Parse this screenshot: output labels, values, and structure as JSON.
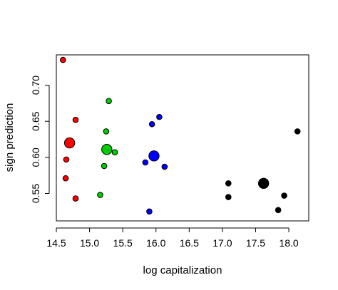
{
  "chart_data": {
    "type": "scatter",
    "title": "",
    "xlabel": "log capitalization",
    "ylabel": "sign prediction",
    "xlim": [
      14.5,
      18.3
    ],
    "ylim": [
      0.512,
      0.742
    ],
    "x_ticks": [
      14.5,
      15.0,
      15.5,
      16.0,
      16.5,
      17.0,
      17.5,
      18.0
    ],
    "x_tick_labels": [
      "14.5",
      "15.0",
      "15.5",
      "16.0",
      "16.5",
      "17.0",
      "17.5",
      "18.0"
    ],
    "y_ticks": [
      0.55,
      0.6,
      0.65,
      0.7
    ],
    "y_tick_labels": [
      "0.55",
      "0.60",
      "0.65",
      "0.70"
    ],
    "grid": false,
    "legend": "none",
    "series": [
      {
        "color": "#ff0000",
        "points": [
          [
            14.6,
            0.735
          ],
          [
            14.79,
            0.652
          ],
          [
            14.65,
            0.597
          ],
          [
            14.64,
            0.571
          ],
          [
            14.79,
            0.543
          ]
        ],
        "mean": [
          14.7,
          0.62
        ]
      },
      {
        "color": "#00cc00",
        "points": [
          [
            15.29,
            0.678
          ],
          [
            15.25,
            0.636
          ],
          [
            15.38,
            0.607
          ],
          [
            15.22,
            0.588
          ],
          [
            15.16,
            0.548
          ]
        ],
        "mean": [
          15.26,
          0.611
        ]
      },
      {
        "color": "#0000ff",
        "points": [
          [
            16.05,
            0.656
          ],
          [
            15.94,
            0.646
          ],
          [
            15.84,
            0.593
          ],
          [
            16.13,
            0.587
          ],
          [
            15.9,
            0.525
          ]
        ],
        "mean": [
          15.97,
          0.602
        ]
      },
      {
        "color": "#000000",
        "points": [
          [
            18.13,
            0.636
          ],
          [
            17.09,
            0.564
          ],
          [
            17.09,
            0.545
          ],
          [
            17.93,
            0.547
          ],
          [
            17.84,
            0.527
          ]
        ],
        "mean": [
          17.62,
          0.564
        ]
      }
    ]
  }
}
